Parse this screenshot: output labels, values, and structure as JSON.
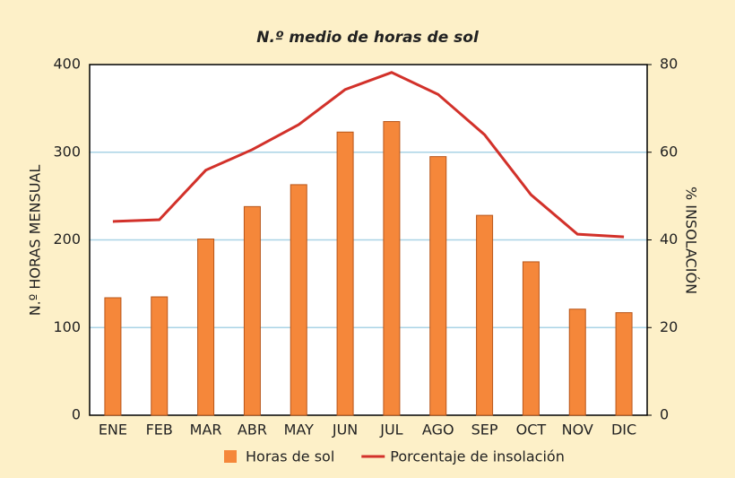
{
  "chart_data": {
    "type": "bar-line",
    "title": "N.º medio de horas de sol",
    "y_label": "N.º HORAS MENSUAL",
    "y2_label": "% INSOLACIÓN",
    "categories": [
      "ENE",
      "FEB",
      "MAR",
      "ABR",
      "MAY",
      "JUN",
      "JUL",
      "AGO",
      "SEP",
      "OCT",
      "NOV",
      "DIC"
    ],
    "series": [
      {
        "name": "Horas de sol",
        "type": "bar",
        "color": "#f5873a",
        "values": [
          134,
          135,
          201,
          238,
          263,
          323,
          335,
          295,
          228,
          175,
          121,
          117
        ]
      },
      {
        "name": "Porcentaje de insolación",
        "type": "line",
        "axis": "y2",
        "color": "#d2312a",
        "values": [
          44.2,
          44.6,
          55.9,
          60.6,
          66.3,
          74.3,
          78.2,
          73.2,
          64.0,
          50.3,
          41.3,
          40.7
        ]
      }
    ],
    "ylim": [
      0,
      400
    ],
    "yticks": [
      0,
      100,
      200,
      300,
      400
    ],
    "y2lim": [
      0,
      80
    ],
    "y2ticks": [
      0,
      20,
      40,
      60,
      80
    ],
    "grid": true
  }
}
